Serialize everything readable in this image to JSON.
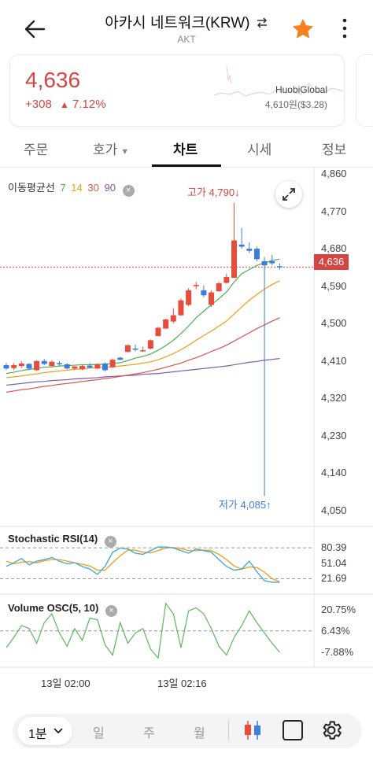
{
  "header": {
    "title": "아카시 네트워크(KRW)",
    "subtitle": "AKT"
  },
  "price_card": {
    "price": "4,636",
    "change": "+308",
    "change_pct": "7.12%",
    "exchange_name": "HuobiGlobal",
    "exchange_price": "4,610원($3.28)"
  },
  "tabs": [
    {
      "label": "주문"
    },
    {
      "label": "호가"
    },
    {
      "label": "차트"
    },
    {
      "label": "시세"
    },
    {
      "label": "정보"
    }
  ],
  "chart": {
    "ma_label": "이동평균선",
    "ma": [
      {
        "period": "7",
        "color": "#4caf50"
      },
      {
        "period": "14",
        "color": "#f39c12"
      },
      {
        "period": "30",
        "color": "#d9534f"
      },
      {
        "period": "90",
        "color": "#7d5ba6"
      }
    ],
    "high_label": "고가 4,790",
    "low_label": "저가 4,085",
    "current_price_tag": "4,636",
    "y_ticks": [
      "4,860",
      "4,770",
      "4,680",
      "4,590",
      "4,500",
      "4,410",
      "4,320",
      "4,230",
      "4,140",
      "4,050"
    ],
    "x_ticks": [
      "13일 02:00",
      "13일 02:16"
    ],
    "colors": {
      "up": "#e74c3c",
      "down": "#3b7ddd",
      "price_line": "#e74c3c"
    }
  },
  "stoch_rsi": {
    "label": "Stochastic RSI(14)",
    "ticks": [
      "80.39",
      "51.04",
      "21.69"
    ]
  },
  "volume_osc": {
    "label": "Volume OSC(5, 10)",
    "ticks": [
      "20.75%",
      "6.43%",
      "-7.88%"
    ]
  },
  "bottom_bar": {
    "interval": "1분",
    "day": "일",
    "week": "주",
    "month": "월"
  },
  "chart_data": {
    "type": "candlestick",
    "y_range": [
      4050,
      4860
    ],
    "candles": [
      {
        "o": 4400,
        "h": 4405,
        "l": 4388,
        "c": 4392
      },
      {
        "o": 4393,
        "h": 4405,
        "l": 4388,
        "c": 4400
      },
      {
        "o": 4398,
        "h": 4410,
        "l": 4393,
        "c": 4404
      },
      {
        "o": 4403,
        "h": 4405,
        "l": 4388,
        "c": 4392
      },
      {
        "o": 4388,
        "h": 4412,
        "l": 4386,
        "c": 4410
      },
      {
        "o": 4410,
        "h": 4415,
        "l": 4400,
        "c": 4403
      },
      {
        "o": 4398,
        "h": 4412,
        "l": 4395,
        "c": 4408
      },
      {
        "o": 4405,
        "h": 4410,
        "l": 4398,
        "c": 4403
      },
      {
        "o": 4402,
        "h": 4405,
        "l": 4390,
        "c": 4392
      },
      {
        "o": 4392,
        "h": 4398,
        "l": 4389,
        "c": 4397
      },
      {
        "o": 4390,
        "h": 4400,
        "l": 4388,
        "c": 4398
      },
      {
        "o": 4399,
        "h": 4405,
        "l": 4392,
        "c": 4394
      },
      {
        "o": 4392,
        "h": 4404,
        "l": 4390,
        "c": 4402
      },
      {
        "o": 4404,
        "h": 4406,
        "l": 4385,
        "c": 4388
      },
      {
        "o": 4395,
        "h": 4416,
        "l": 4393,
        "c": 4413
      },
      {
        "o": 4418,
        "h": 4420,
        "l": 4412,
        "c": 4413
      },
      {
        "o": 4432,
        "h": 4450,
        "l": 4430,
        "c": 4448
      },
      {
        "o": 4440,
        "h": 4450,
        "l": 4433,
        "c": 4437
      },
      {
        "o": 4436,
        "h": 4445,
        "l": 4432,
        "c": 4436
      },
      {
        "o": 4440,
        "h": 4462,
        "l": 4438,
        "c": 4460
      },
      {
        "o": 4470,
        "h": 4492,
        "l": 4470,
        "c": 4490
      },
      {
        "o": 4488,
        "h": 4512,
        "l": 4487,
        "c": 4510
      },
      {
        "o": 4505,
        "h": 4537,
        "l": 4500,
        "c": 4520
      },
      {
        "o": 4520,
        "h": 4560,
        "l": 4518,
        "c": 4556
      },
      {
        "o": 4545,
        "h": 4585,
        "l": 4542,
        "c": 4580
      },
      {
        "o": 4590,
        "h": 4600,
        "l": 4583,
        "c": 4593
      },
      {
        "o": 4580,
        "h": 4592,
        "l": 4563,
        "c": 4568
      },
      {
        "o": 4545,
        "h": 4580,
        "l": 4540,
        "c": 4575
      },
      {
        "o": 4578,
        "h": 4600,
        "l": 4576,
        "c": 4597
      },
      {
        "o": 4598,
        "h": 4620,
        "l": 4596,
        "c": 4612
      },
      {
        "o": 4610,
        "h": 4790,
        "l": 4610,
        "c": 4700
      },
      {
        "o": 4690,
        "h": 4730,
        "l": 4680,
        "c": 4685
      },
      {
        "o": 4680,
        "h": 4695,
        "l": 4670,
        "c": 4675
      },
      {
        "o": 4680,
        "h": 4685,
        "l": 4650,
        "c": 4655
      },
      {
        "o": 4650,
        "h": 4660,
        "l": 4085,
        "c": 4640
      },
      {
        "o": 4650,
        "h": 4665,
        "l": 4640,
        "c": 4645
      },
      {
        "o": 4638,
        "h": 4645,
        "l": 4630,
        "c": 4636
      }
    ],
    "ma7": [
      4380,
      4383,
      4387,
      4390,
      4392,
      4395,
      4396,
      4398,
      4399,
      4400,
      4401,
      4401,
      4402,
      4402,
      4404,
      4406,
      4411,
      4417,
      4421,
      4427,
      4436,
      4447,
      4460,
      4476,
      4494,
      4514,
      4530,
      4545,
      4560,
      4576,
      4600,
      4620,
      4630,
      4640,
      4646,
      4652,
      4655
    ],
    "ma14": [
      4370,
      4372,
      4374,
      4377,
      4379,
      4382,
      4384,
      4386,
      4388,
      4390,
      4391,
      4393,
      4394,
      4395,
      4396,
      4398,
      4400,
      4402,
      4405,
      4408,
      4413,
      4420,
      4428,
      4437,
      4448,
      4460,
      4471,
      4482,
      4494,
      4506,
      4523,
      4540,
      4556,
      4570,
      4583,
      4594,
      4603
    ],
    "ma30": [
      4335,
      4338,
      4341,
      4343,
      4346,
      4349,
      4351,
      4354,
      4356,
      4358,
      4361,
      4363,
      4365,
      4368,
      4370,
      4373,
      4376,
      4379,
      4382,
      4386,
      4390,
      4395,
      4400,
      4405,
      4412,
      4418,
      4425,
      4433,
      4440,
      4448,
      4458,
      4468,
      4478,
      4488,
      4497,
      4506,
      4514
    ],
    "ma90": [
      4352,
      4354,
      4356,
      4358,
      4360,
      4361,
      4363,
      4364,
      4365,
      4367,
      4368,
      4369,
      4370,
      4372,
      4373,
      4374,
      4375,
      4376,
      4378,
      4379,
      4380,
      4382,
      4384,
      4386,
      4388,
      4390,
      4392,
      4394,
      4396,
      4398,
      4401,
      4404,
      4407,
      4409,
      4412,
      4414,
      4416
    ],
    "stoch_k": [
      45,
      52,
      60,
      48,
      55,
      58,
      62,
      55,
      50,
      52,
      45,
      40,
      30,
      45,
      72,
      80,
      78,
      70,
      68,
      75,
      82,
      82,
      80,
      75,
      70,
      78,
      75,
      72,
      58,
      45,
      38,
      40,
      55,
      35,
      18,
      15,
      15
    ],
    "stoch_d": [
      55,
      50,
      53,
      54,
      52,
      56,
      58,
      58,
      55,
      52,
      49,
      46,
      38,
      38,
      52,
      65,
      76,
      76,
      72,
      71,
      75,
      80,
      81,
      79,
      75,
      75,
      76,
      75,
      68,
      58,
      46,
      40,
      44,
      43,
      34,
      22,
      16
    ],
    "vosc": [
      -5,
      2,
      10,
      8,
      -2,
      12,
      18,
      5,
      -4,
      8,
      0,
      15,
      14,
      -3,
      -10,
      12,
      -2,
      5,
      8,
      -6,
      -12,
      25,
      18,
      -5,
      20,
      22,
      18,
      8,
      -4,
      -10,
      2,
      10,
      20,
      12,
      5,
      -2,
      -8
    ]
  }
}
